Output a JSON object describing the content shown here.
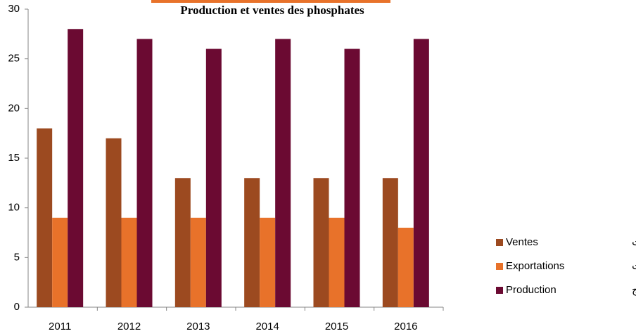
{
  "chart_data": {
    "type": "bar",
    "title": "Production et ventes des phosphates",
    "categories": [
      "2011",
      "2012",
      "2013",
      "2014",
      "2015",
      "2016"
    ],
    "series": [
      {
        "name": "Ventes",
        "name_ar": "المبيعات",
        "color": "#9c4a20",
        "values": [
          18,
          17,
          13,
          13,
          13,
          13
        ]
      },
      {
        "name": "Exportations",
        "name_ar": "الصادرات",
        "color": "#e8722a",
        "values": [
          9,
          9,
          9,
          9,
          9,
          8
        ]
      },
      {
        "name": "Production",
        "name_ar": "الإنتاج",
        "color": "#6b0a32",
        "values": [
          28,
          27,
          26,
          27,
          26,
          27
        ]
      }
    ],
    "ylim": [
      0,
      30
    ],
    "yticks": [
      0,
      5,
      10,
      15,
      20,
      25,
      30
    ],
    "grid": false,
    "legend": "right"
  }
}
